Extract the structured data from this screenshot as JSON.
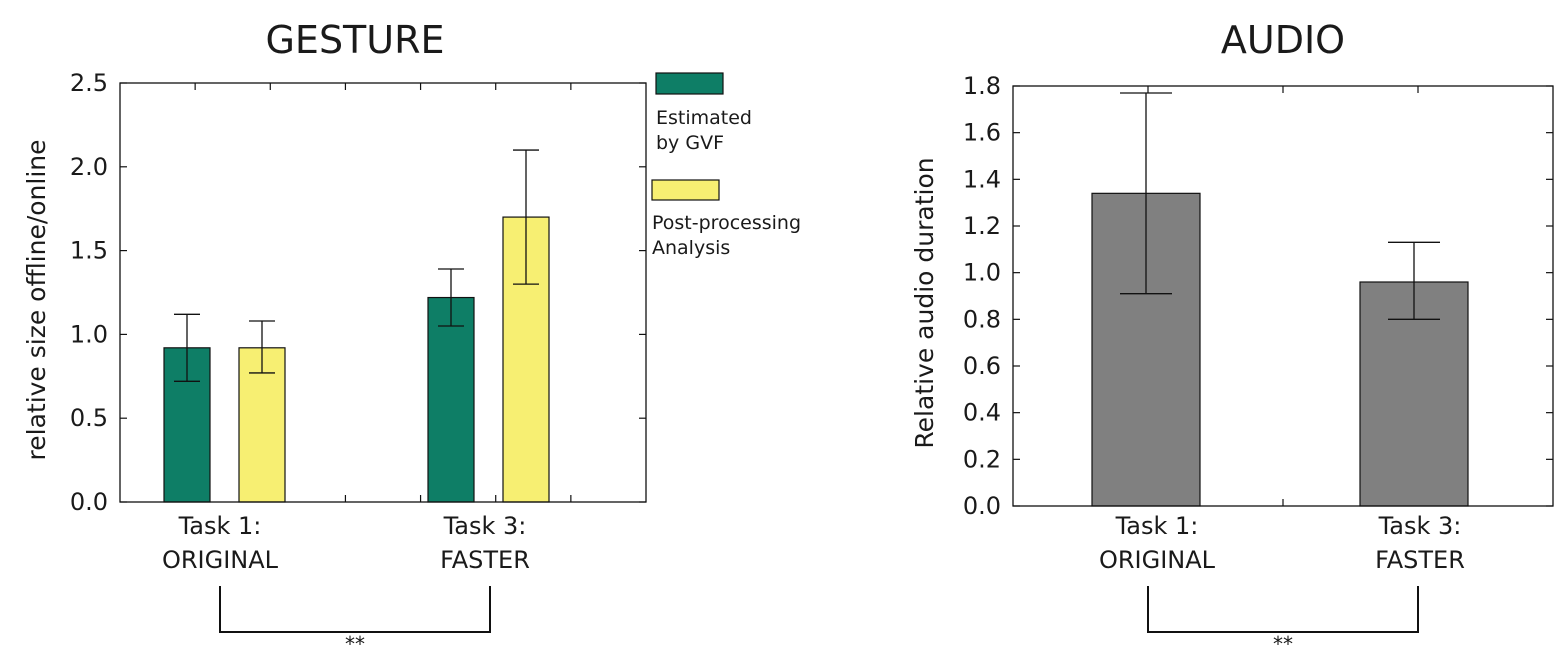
{
  "colors": {
    "gvf": "#0e7e66",
    "post": "#f7ef72",
    "audio": "#808080"
  },
  "chart_data": [
    {
      "type": "bar",
      "title": "GESTURE",
      "ylabel": "relative size offline/online",
      "xlabel": "",
      "categories": [
        "Task 1:\nORIGINAL",
        "Task 3:\nFASTER"
      ],
      "ylim": [
        0,
        2.5
      ],
      "yticks": [
        0.0,
        0.5,
        1.0,
        1.5,
        2.0,
        2.5
      ],
      "ytick_labels": [
        "0.0",
        "0.5",
        "1.0",
        "1.5",
        "2.0",
        "2.5"
      ],
      "series": [
        {
          "name": "Estimated by GVF",
          "values": [
            0.92,
            1.22
          ],
          "error_low": [
            0.72,
            1.05
          ],
          "error_high": [
            1.12,
            1.39
          ]
        },
        {
          "name": "Post-processing Analysis",
          "values": [
            0.92,
            1.7
          ],
          "error_low": [
            0.77,
            1.3
          ],
          "error_high": [
            1.08,
            2.1
          ]
        }
      ],
      "legend": {
        "placement": "right",
        "entries": [
          "Estimated\nby GVF",
          "Post-processing\nAnalysis"
        ]
      },
      "grid": false,
      "significance": "**"
    },
    {
      "type": "bar",
      "title": "AUDIO",
      "ylabel": "Relative audio duration",
      "xlabel": "",
      "categories": [
        "Task 1:\nORIGINAL",
        "Task 3:\nFASTER"
      ],
      "ylim": [
        0,
        1.8
      ],
      "yticks": [
        0.0,
        0.2,
        0.4,
        0.6,
        0.8,
        1.0,
        1.2,
        1.4,
        1.6,
        1.8
      ],
      "ytick_labels": [
        "0.0",
        "0.2",
        "0.4",
        "0.6",
        "0.8",
        "1.0",
        "1.2",
        "1.4",
        "1.6",
        "1.8"
      ],
      "series": [
        {
          "values": [
            1.34,
            0.96
          ],
          "error_low": [
            0.91,
            0.8
          ],
          "error_high": [
            1.77,
            1.13
          ]
        }
      ],
      "grid": false,
      "significance": "**"
    }
  ]
}
